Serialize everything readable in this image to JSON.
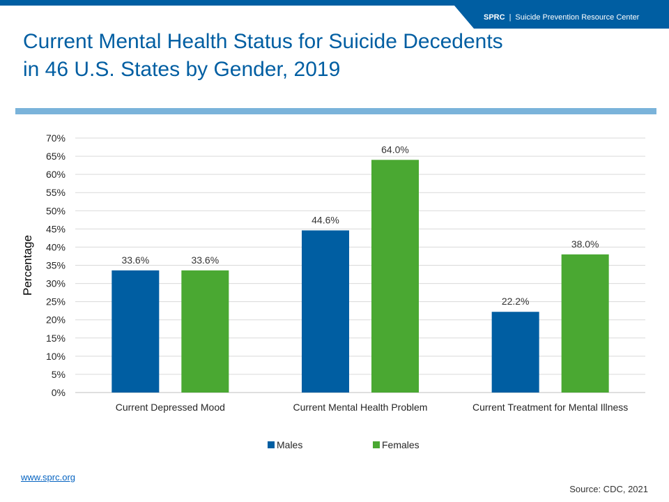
{
  "header": {
    "org_abbr": "SPRC",
    "org_sep": "|",
    "org_name": "Suicide Prevention Resource Center",
    "brand_color": "#005ea2"
  },
  "footer": {
    "link_text": "www.sprc.org",
    "source": "Source: CDC, 2021"
  },
  "chart_data": {
    "type": "bar",
    "title": "Current Mental Health Status for Suicide Decedents in 46 U.S. States by Gender, 2019",
    "xlabel": "",
    "ylabel": "Percentage",
    "categories": [
      "Current Depressed Mood",
      "Current Mental Health Problem",
      "Current Treatment for Mental Illness"
    ],
    "series": [
      {
        "name": "Males",
        "values": [
          33.6,
          44.6,
          22.2
        ],
        "labels": [
          "33.6%",
          "44.6%",
          "22.2%"
        ],
        "color": "#005ea2"
      },
      {
        "name": "Females",
        "values": [
          33.6,
          64.0,
          38.0
        ],
        "labels": [
          "33.6%",
          "64.0%",
          "38.0%"
        ],
        "color": "#4aa832"
      }
    ],
    "ylim": [
      0,
      70
    ],
    "ytick_values": [
      0,
      5,
      10,
      15,
      20,
      25,
      30,
      35,
      40,
      45,
      50,
      55,
      60,
      65,
      70
    ],
    "ytick_labels": [
      "0%",
      "5%",
      "10%",
      "15%",
      "20%",
      "25%",
      "30%",
      "35%",
      "40%",
      "45%",
      "50%",
      "55%",
      "60%",
      "65%",
      "70%"
    ],
    "grid": true,
    "legend": "bottom"
  }
}
